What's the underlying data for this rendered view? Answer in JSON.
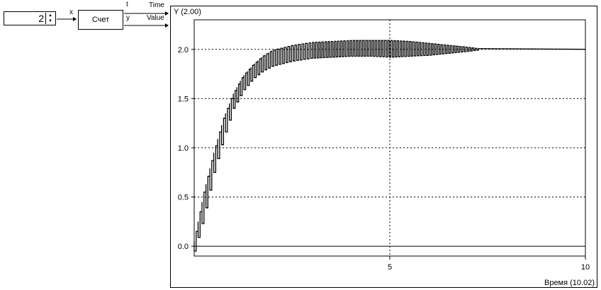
{
  "input_block": {
    "value": "2",
    "port_label": "x"
  },
  "count_block": {
    "label": "Счет",
    "out_top": "t",
    "out_bottom": "y"
  },
  "signals": {
    "time": "Time",
    "value": "Value"
  },
  "chart_data": {
    "type": "line",
    "title": "Y (2.00)",
    "xlabel": "Время (10.02)",
    "ylabel": "",
    "xlim": [
      0,
      10
    ],
    "ylim": [
      -0.1,
      2.3
    ],
    "x_ticks": [
      5,
      10
    ],
    "y_ticks": [
      0.0,
      0.5,
      1.0,
      1.5,
      2.0
    ],
    "y_tick_labels": [
      "0.0",
      "0.5",
      "1.0",
      "1.5",
      "2.0"
    ],
    "x_tick_labels": [
      "5",
      "10"
    ],
    "grid": true,
    "series": [
      {
        "upper": [
          [
            0,
            0.05
          ],
          [
            0.25,
            0.55
          ],
          [
            0.5,
            0.95
          ],
          [
            0.75,
            1.3
          ],
          [
            1,
            1.55
          ],
          [
            1.25,
            1.73
          ],
          [
            1.5,
            1.84
          ],
          [
            1.75,
            1.93
          ],
          [
            2,
            1.99
          ],
          [
            2.5,
            2.04
          ],
          [
            3,
            2.07
          ],
          [
            3.5,
            2.08
          ],
          [
            4,
            2.09
          ],
          [
            4.5,
            2.09
          ],
          [
            5,
            2.09
          ],
          [
            5.5,
            2.08
          ],
          [
            6,
            2.06
          ],
          [
            6.5,
            2.04
          ],
          [
            7,
            2.02
          ],
          [
            7.3,
            2.005
          ],
          [
            10,
            2.0
          ]
        ],
        "lower": [
          [
            0,
            -0.05
          ],
          [
            0.25,
            0.3
          ],
          [
            0.5,
            0.75
          ],
          [
            0.75,
            1.1
          ],
          [
            1,
            1.4
          ],
          [
            1.25,
            1.58
          ],
          [
            1.5,
            1.7
          ],
          [
            1.75,
            1.78
          ],
          [
            2,
            1.83
          ],
          [
            2.5,
            1.88
          ],
          [
            3,
            1.91
          ],
          [
            3.5,
            1.92
          ],
          [
            4,
            1.93
          ],
          [
            4.5,
            1.93
          ],
          [
            5,
            1.92
          ],
          [
            5.5,
            1.93
          ],
          [
            6,
            1.94
          ],
          [
            6.5,
            1.96
          ],
          [
            7,
            1.98
          ],
          [
            7.3,
            1.995
          ],
          [
            10,
            2.0
          ]
        ]
      }
    ]
  }
}
